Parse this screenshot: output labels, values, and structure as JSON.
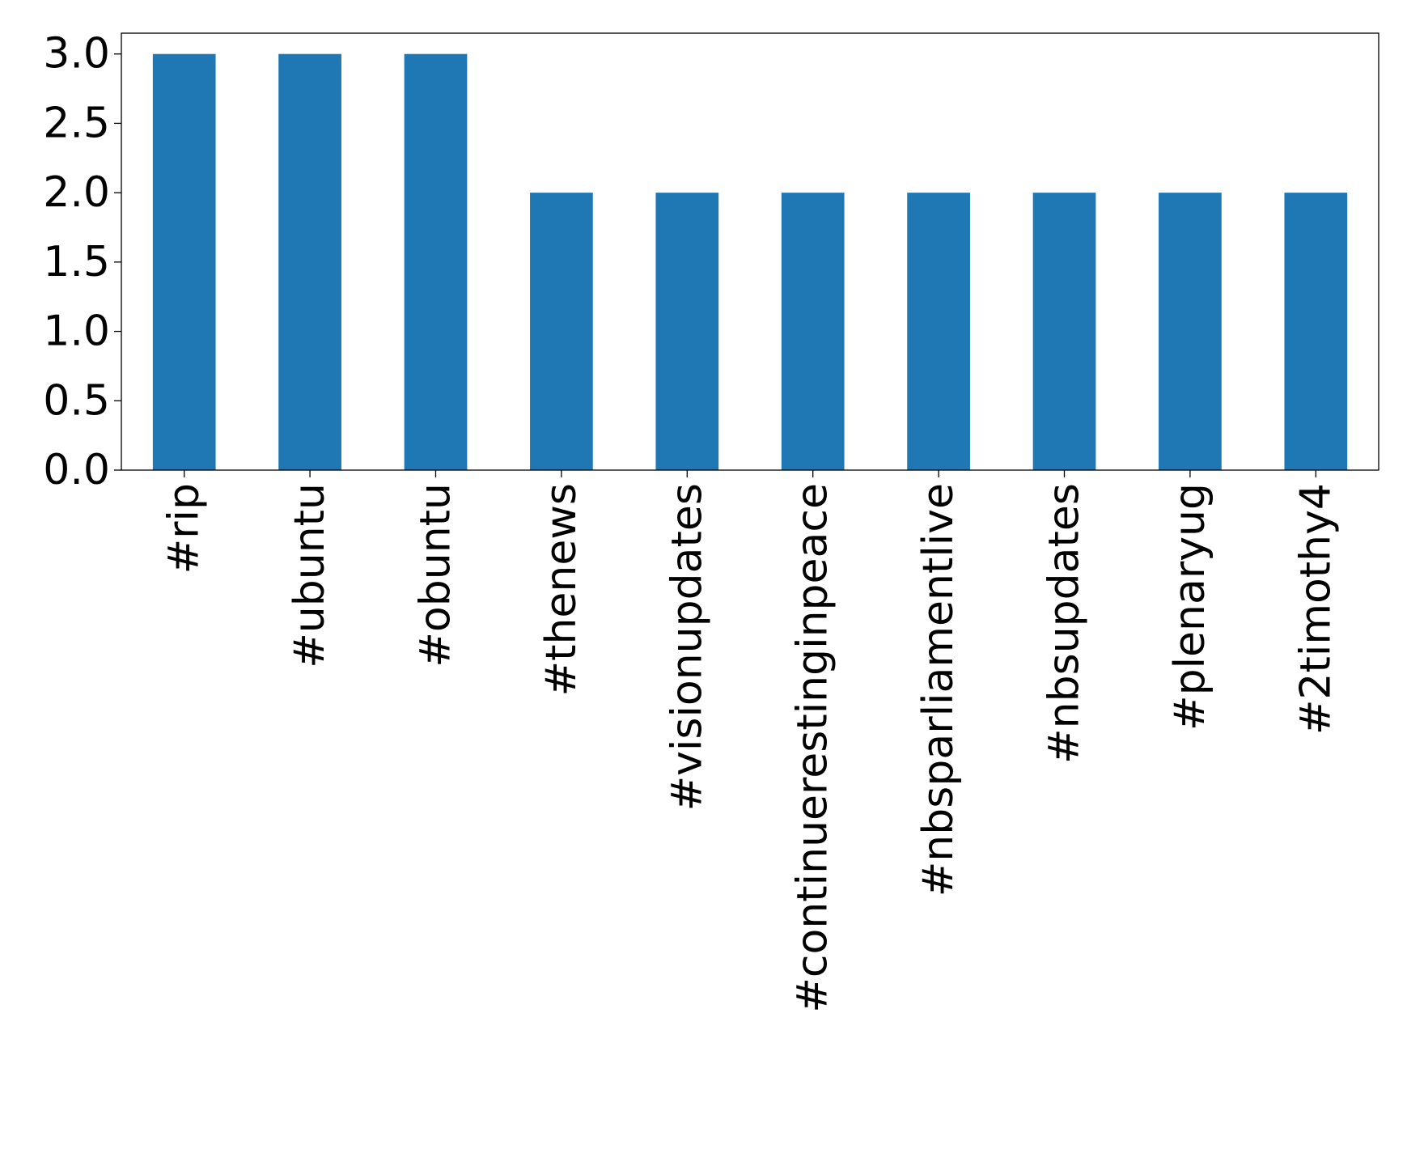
{
  "chart_data": {
    "type": "bar",
    "categories": [
      "#rip",
      "#ubuntu",
      "#obuntu",
      "#thenews",
      "#visionupdates",
      "#continuerestinginpeace",
      "#nbsparliamentlive",
      "#nbsupdates",
      "#plenaryug",
      "#2timothy4"
    ],
    "values": [
      3,
      3,
      3,
      2,
      2,
      2,
      2,
      2,
      2,
      2
    ],
    "ylim": [
      0,
      3.15
    ],
    "yticks": [
      "0.0",
      "0.5",
      "1.0",
      "1.5",
      "2.0",
      "2.5",
      "3.0"
    ],
    "title": "",
    "xlabel": "",
    "ylabel": "",
    "grid": false,
    "bar_color": "#1f77b4"
  }
}
